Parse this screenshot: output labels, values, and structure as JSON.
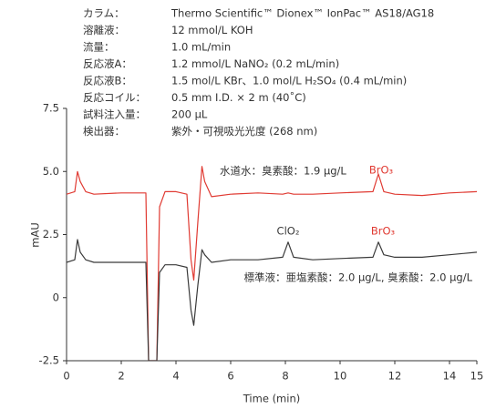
{
  "chart_data": {
    "type": "line",
    "conditions": [
      {
        "label": "カラム：",
        "text": "Thermo Scientific™ Dionex™ IonPac™ AS18/AG18"
      },
      {
        "label": "溶離液：",
        "text": "12 mmol/L KOH"
      },
      {
        "label": "流量：",
        "text": "1.0 mL/min"
      },
      {
        "label": "反応液A：",
        "text": "1.2 mmol/L NaNO₂ (0.2 mL/min)"
      },
      {
        "label": "反応液B：",
        "text": "1.5 mol/L KBr、1.0 mol/L H₂SO₄ (0.4 mL/min)"
      },
      {
        "label": "反応コイル：",
        "text": "0.5 mm I.D. × 2 m (40˚C)"
      },
      {
        "label": "試料注入量：",
        "text": "200 μL"
      },
      {
        "label": "検出器：",
        "text": "紫外・可視吸光光度 (268 nm)"
      }
    ],
    "x_label": "Time (min)",
    "y_label": "mAU",
    "x": [
      0,
      0.3,
      0.4,
      0.5,
      0.7,
      1.0,
      2.0,
      2.9,
      3.0,
      3.1,
      3.2,
      3.3,
      3.4,
      3.6,
      4.0,
      4.4,
      4.55,
      4.65,
      4.8,
      4.95,
      5.05,
      5.3,
      6,
      7,
      7.9,
      8.1,
      8.3,
      9,
      10,
      11.2,
      11.4,
      11.6,
      12,
      13,
      14,
      15
    ],
    "series": [
      {
        "name": "水道水：臭素酸：1.9 μg/L",
        "color": "#e03a32",
        "values": [
          4.1,
          4.2,
          5.0,
          4.6,
          4.2,
          4.1,
          4.15,
          4.15,
          -2.5,
          -2.5,
          -2.5,
          -2.5,
          3.6,
          4.2,
          4.2,
          4.1,
          1.5,
          0.7,
          3.0,
          5.2,
          4.6,
          4.0,
          4.1,
          4.15,
          4.1,
          4.15,
          4.1,
          4.1,
          4.15,
          4.2,
          4.9,
          4.2,
          4.1,
          4.05,
          4.15,
          4.2
        ]
      },
      {
        "name": "標準液：亜塩素酸：2.0 μg/L, 臭素酸：2.0 μg/L",
        "color": "#3a3a3a",
        "values": [
          1.4,
          1.5,
          2.3,
          1.8,
          1.5,
          1.4,
          1.4,
          1.4,
          -2.5,
          -2.5,
          -2.5,
          -2.5,
          1.0,
          1.3,
          1.3,
          1.2,
          -0.5,
          -1.1,
          0.5,
          1.9,
          1.7,
          1.4,
          1.5,
          1.5,
          1.6,
          2.2,
          1.6,
          1.5,
          1.55,
          1.6,
          2.2,
          1.7,
          1.6,
          1.6,
          1.7,
          1.8
        ]
      }
    ],
    "annotations": [
      {
        "text": "BrO₃",
        "color": "#e03a32"
      },
      {
        "text": "ClO₂",
        "color": "#3a3a3a"
      },
      {
        "text": "BrO₃",
        "color": "#e03a32"
      }
    ],
    "xlim": [
      0,
      15
    ],
    "xticks": [
      0,
      2,
      4,
      6,
      8,
      10,
      12,
      14,
      15
    ],
    "ylim": [
      -2.5,
      7.5
    ],
    "yticks": [
      -2.5,
      0,
      2.5,
      {
        "value": 5,
        "label": "5.0"
      },
      7.5
    ]
  }
}
